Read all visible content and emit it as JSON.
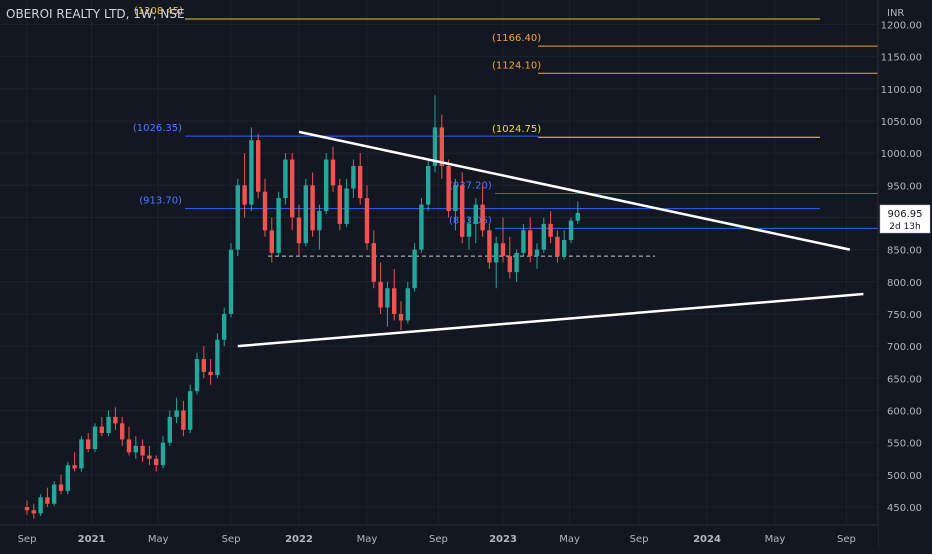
{
  "chart_data": {
    "type": "candlestick",
    "title": "OBEROI REALTY LTD, 1W, NSE",
    "currency_label": "INR",
    "y_ticks": [
      450,
      500,
      550,
      600,
      650,
      700,
      750,
      800,
      850,
      900,
      950,
      1000,
      1050,
      1100,
      1150,
      1200
    ],
    "y_tick_labels": [
      "450.00",
      "500.00",
      "550.00",
      "600.00",
      "650.00",
      "700.00",
      "750.00",
      "800.00",
      "850.00",
      "900.00",
      "950.00",
      "1000.00",
      "1050.00",
      "1100.00",
      "1150.00",
      "1200.00"
    ],
    "ylim": [
      422,
      1238
    ],
    "x_ticks": [
      "Sep",
      "2021",
      "May",
      "Sep",
      "2022",
      "May",
      "Sep",
      "2023",
      "May",
      "Sep",
      "2024",
      "May",
      "Sep"
    ],
    "x_tick_bold": [
      "2021",
      "2022",
      "2023",
      "2024"
    ],
    "last_price": {
      "label": "906.95",
      "countdown": "2d 13h",
      "value": 906.95
    },
    "levels": [
      {
        "label": "(1208.45)",
        "value": 1208.45,
        "color": "#e8c530",
        "label_color": "#e8c530"
      },
      {
        "label": "(1166.40)",
        "value": 1166.4,
        "color": "#f2a33a",
        "label_color": "#f2a33a"
      },
      {
        "label": "(1124.10)",
        "value": 1124.1,
        "color": "#f2a33a",
        "label_color": "#f2a33a"
      },
      {
        "label": "(1026.35)",
        "value": 1026.35,
        "color": "#2962ff",
        "label_color": "#4a7bff"
      },
      {
        "label": "(1024.75)",
        "value": 1024.75,
        "color": "#f5d842",
        "label_color": "#f5d842"
      },
      {
        "label": "(937.20)",
        "value": 937.2,
        "color": "#2962ff",
        "label_color": "#4a7bff"
      },
      {
        "label": "(913.70)",
        "value": 913.7,
        "color": "#2962ff",
        "label_color": "#4a7bff"
      },
      {
        "label": "(883.05)",
        "value": 883.05,
        "color": "#2962ff",
        "label_color": "#4a7bff"
      }
    ],
    "dashed_level": {
      "value": 840
    },
    "trendlines": [
      {
        "name": "upper",
        "from": [
          40,
          1033
        ],
        "to": [
          121,
          850
        ]
      },
      {
        "name": "lower",
        "from": [
          31,
          700
        ],
        "to": [
          123,
          781
        ]
      }
    ],
    "colors": {
      "up": "#26a69a",
      "down": "#ef5350",
      "background": "#131722",
      "grid": "#1e222d",
      "text": "#b2b5be"
    },
    "candles": [
      [
        450,
        460,
        438,
        445
      ],
      [
        445,
        455,
        432,
        440
      ],
      [
        440,
        470,
        436,
        465
      ],
      [
        465,
        480,
        450,
        455
      ],
      [
        455,
        490,
        452,
        485
      ],
      [
        485,
        500,
        470,
        475
      ],
      [
        475,
        520,
        470,
        515
      ],
      [
        515,
        535,
        505,
        510
      ],
      [
        510,
        560,
        505,
        555
      ],
      [
        555,
        565,
        535,
        540
      ],
      [
        540,
        580,
        535,
        575
      ],
      [
        575,
        590,
        560,
        565
      ],
      [
        565,
        600,
        560,
        590
      ],
      [
        590,
        605,
        570,
        580
      ],
      [
        580,
        590,
        545,
        555
      ],
      [
        555,
        575,
        530,
        535
      ],
      [
        535,
        560,
        525,
        545
      ],
      [
        545,
        555,
        520,
        530
      ],
      [
        530,
        545,
        515,
        525
      ],
      [
        525,
        530,
        505,
        515
      ],
      [
        515,
        560,
        510,
        550
      ],
      [
        550,
        600,
        545,
        590
      ],
      [
        590,
        620,
        580,
        600
      ],
      [
        600,
        615,
        560,
        570
      ],
      [
        570,
        640,
        565,
        630
      ],
      [
        630,
        690,
        625,
        680
      ],
      [
        680,
        700,
        650,
        660
      ],
      [
        660,
        680,
        640,
        655
      ],
      [
        655,
        720,
        650,
        710
      ],
      [
        710,
        760,
        700,
        750
      ],
      [
        750,
        860,
        745,
        850
      ],
      [
        850,
        960,
        840,
        950
      ],
      [
        950,
        1000,
        900,
        920
      ],
      [
        920,
        1040,
        910,
        1020
      ],
      [
        1020,
        1030,
        930,
        940
      ],
      [
        940,
        960,
        870,
        880
      ],
      [
        880,
        900,
        830,
        845
      ],
      [
        845,
        940,
        840,
        930
      ],
      [
        930,
        1000,
        920,
        990
      ],
      [
        990,
        1000,
        880,
        900
      ],
      [
        900,
        920,
        840,
        860
      ],
      [
        860,
        960,
        855,
        950
      ],
      [
        950,
        970,
        870,
        880
      ],
      [
        880,
        920,
        850,
        910
      ],
      [
        910,
        1000,
        905,
        990
      ],
      [
        990,
        1010,
        940,
        950
      ],
      [
        950,
        960,
        880,
        890
      ],
      [
        890,
        960,
        885,
        945
      ],
      [
        945,
        990,
        930,
        980
      ],
      [
        980,
        1000,
        920,
        930
      ],
      [
        930,
        950,
        850,
        860
      ],
      [
        860,
        880,
        790,
        800
      ],
      [
        800,
        830,
        750,
        760
      ],
      [
        760,
        800,
        730,
        790
      ],
      [
        790,
        820,
        740,
        750
      ],
      [
        750,
        770,
        725,
        740
      ],
      [
        740,
        800,
        735,
        790
      ],
      [
        790,
        860,
        785,
        850
      ],
      [
        850,
        930,
        845,
        920
      ],
      [
        920,
        990,
        910,
        980
      ],
      [
        980,
        1090,
        970,
        1040
      ],
      [
        1040,
        1060,
        960,
        980
      ],
      [
        980,
        990,
        900,
        910
      ],
      [
        910,
        960,
        880,
        950
      ],
      [
        950,
        970,
        860,
        870
      ],
      [
        870,
        900,
        850,
        890
      ],
      [
        890,
        930,
        860,
        920
      ],
      [
        920,
        950,
        870,
        880
      ],
      [
        880,
        890,
        820,
        830
      ],
      [
        830,
        870,
        790,
        860
      ],
      [
        860,
        900,
        830,
        840
      ],
      [
        840,
        870,
        805,
        815
      ],
      [
        815,
        850,
        800,
        845
      ],
      [
        845,
        890,
        840,
        880
      ],
      [
        880,
        900,
        830,
        840
      ],
      [
        840,
        860,
        820,
        850
      ],
      [
        850,
        900,
        845,
        890
      ],
      [
        890,
        910,
        860,
        870
      ],
      [
        870,
        880,
        830,
        840
      ],
      [
        840,
        880,
        835,
        865
      ],
      [
        865,
        900,
        860,
        895
      ],
      [
        895,
        925,
        890,
        907
      ]
    ]
  }
}
